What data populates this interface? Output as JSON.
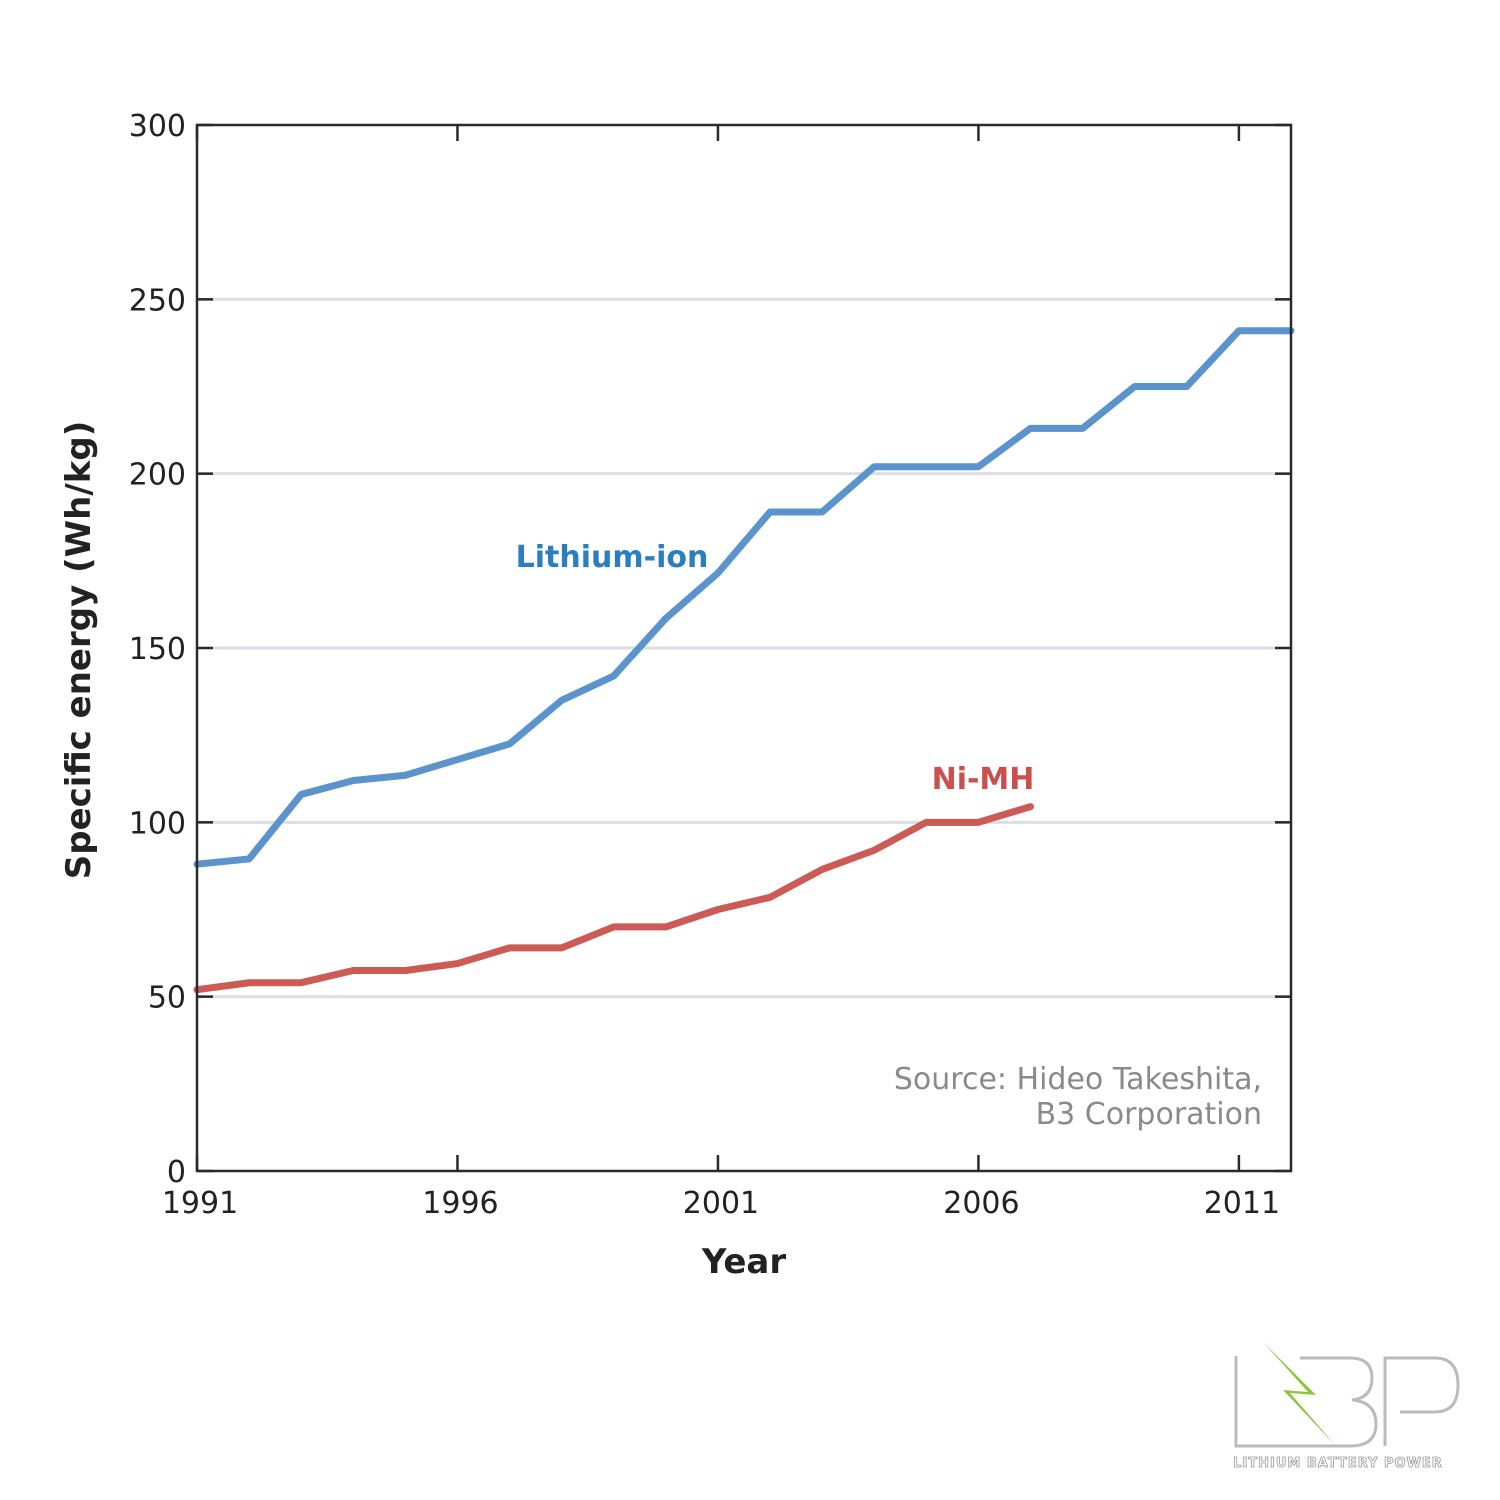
{
  "chart_data": {
    "type": "line",
    "title": "",
    "xlabel": "Year",
    "ylabel": "Specific energy (Wh/kg)",
    "xlim": [
      1991,
      2012
    ],
    "ylim": [
      0,
      300
    ],
    "x_ticks": [
      1991,
      1996,
      2001,
      2006,
      2011
    ],
    "y_ticks": [
      0,
      50,
      100,
      150,
      200,
      250,
      300
    ],
    "grid": "horizontal",
    "series": [
      {
        "name": "Lithium-ion",
        "color": "#5b93cc",
        "label_color": "#2b7fc0",
        "x": [
          1991,
          1992,
          1993,
          1994,
          1995,
          1996,
          1997,
          1998,
          1999,
          2000,
          2001,
          2002,
          2003,
          2004,
          2005,
          2006,
          2007,
          2008,
          2009,
          2010,
          2011,
          2012
        ],
        "y": [
          88,
          89.5,
          108,
          112,
          113.5,
          118,
          122.5,
          135,
          142,
          158.5,
          171.5,
          189,
          189,
          202,
          202,
          202,
          213,
          213,
          225,
          225,
          241,
          241
        ]
      },
      {
        "name": "Ni-MH",
        "color": "#cc5a55",
        "label_color": "#c9504f",
        "x": [
          1991,
          1992,
          1993,
          1994,
          1995,
          1996,
          1997,
          1998,
          1999,
          2000,
          2001,
          2002,
          2003,
          2004,
          2005,
          2006,
          2007
        ],
        "y": [
          52,
          54,
          54,
          57.5,
          57.5,
          59.5,
          64,
          64,
          70,
          70,
          75,
          78.5,
          86.5,
          92,
          100,
          100,
          104.5
        ]
      }
    ],
    "annotations": [
      "Source: Hideo Takeshita,",
      "B3 Corporation"
    ]
  },
  "logo": {
    "text": "LBP",
    "tagline": "LITHIUM BATTERY POWER",
    "accent": "#8cc63f"
  }
}
